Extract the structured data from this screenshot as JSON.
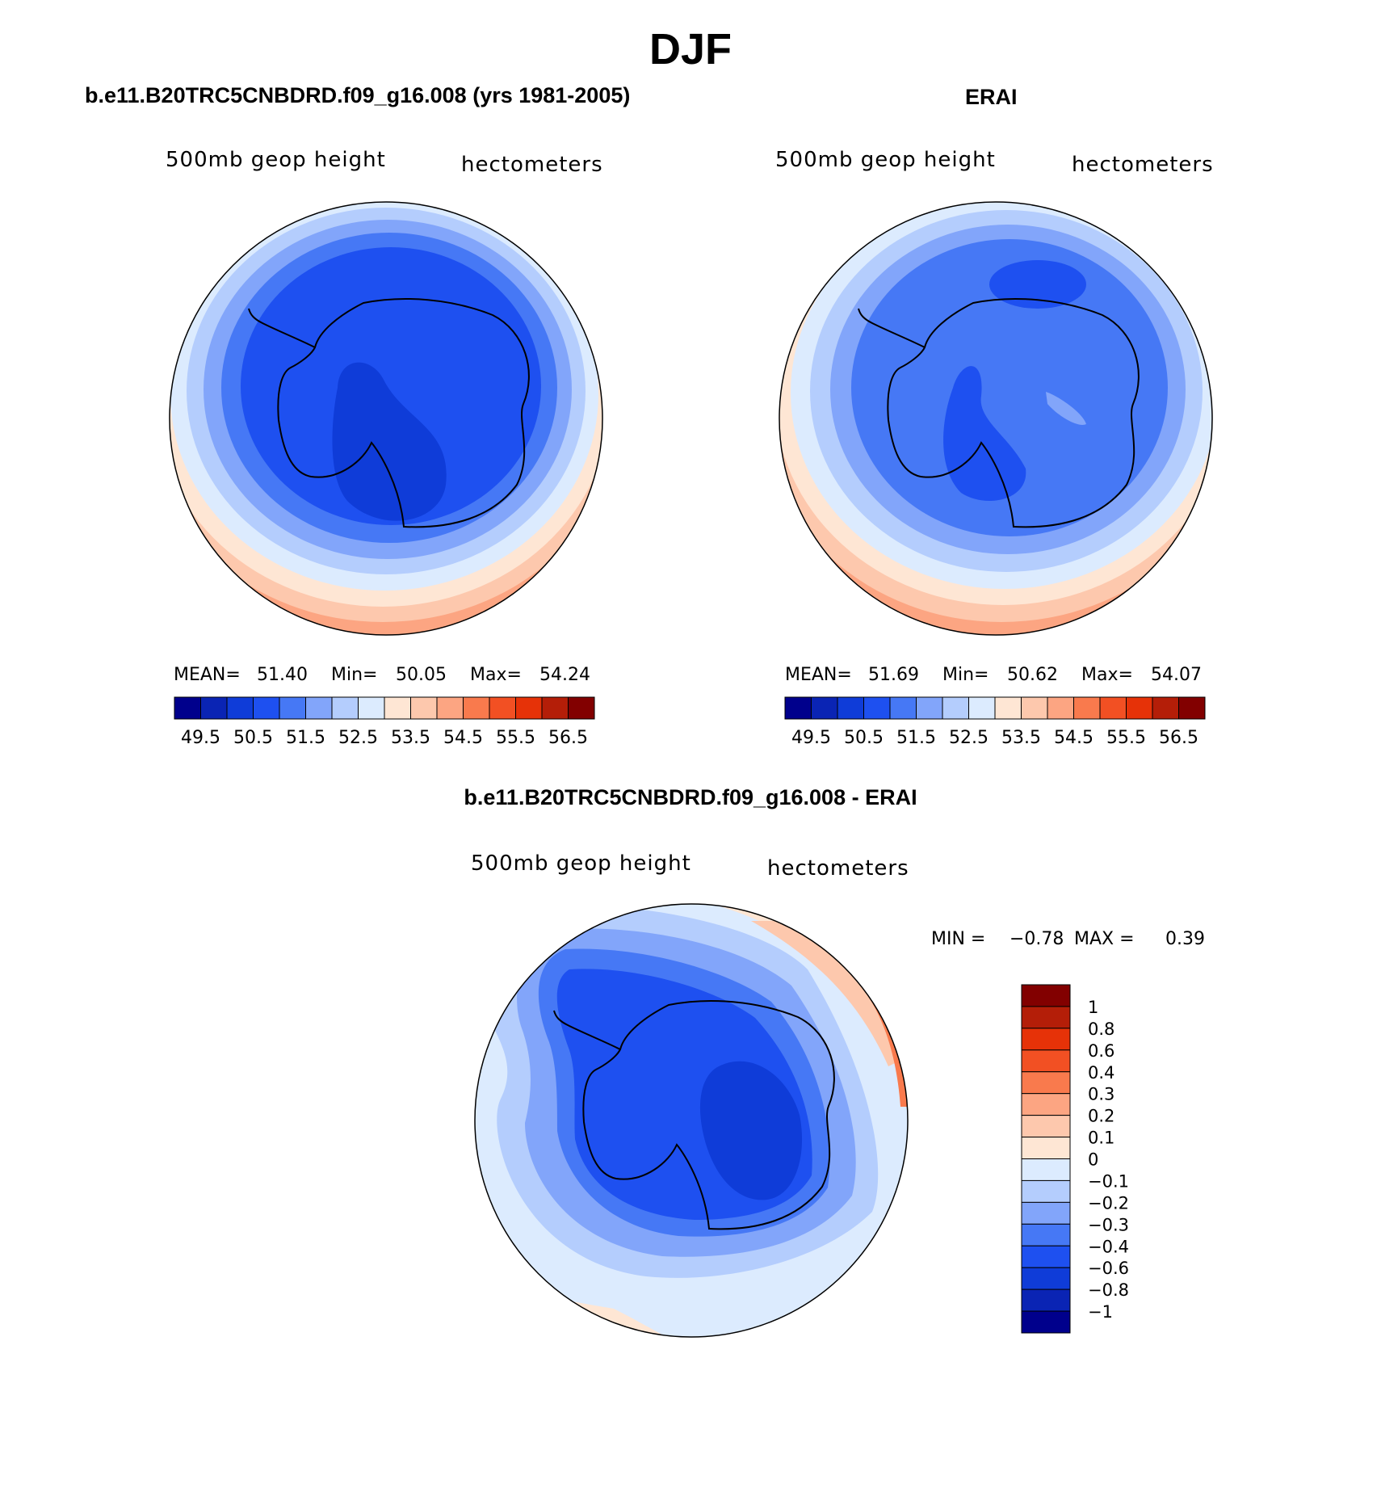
{
  "figure": {
    "title": "DJF",
    "panels": [
      {
        "title": "b.e11.B20TRC5CNBDRD.f09_g16.008 (yrs 1981-2005)",
        "left_label": "500mb geop height",
        "right_label": "hectometers",
        "stats": {
          "mean_label": "MEAN=",
          "mean": "51.40",
          "min_label": "Min=",
          "min": "50.05",
          "max_label": "Max=",
          "max": "54.24"
        }
      },
      {
        "title": "ERAI",
        "left_label": "500mb geop height",
        "right_label": "hectometers",
        "stats": {
          "mean_label": "MEAN=",
          "mean": "51.69",
          "min_label": "Min=",
          "min": "50.62",
          "max_label": "Max=",
          "max": "54.07"
        }
      },
      {
        "title": "b.e11.B20TRC5CNBDRD.f09_g16.008 - ERAI",
        "left_label": "500mb geop height",
        "right_label": "hectometers",
        "stats": {
          "min_label": "MIN =",
          "min": "−0.78",
          "max_label": "MAX =",
          "max": "0.39"
        }
      }
    ]
  },
  "chart_data": [
    {
      "type": "heatmap",
      "projection": "south-polar-stereographic",
      "title": "b.e11.B20TRC5CNBDRD.f09_g16.008 (yrs 1981-2005)",
      "variable": "500mb geop height",
      "units": "hectometers",
      "mean": 51.4,
      "min": 50.05,
      "max": 54.24,
      "colorbar": {
        "orientation": "horizontal",
        "levels": [
          49.5,
          50,
          50.5,
          51,
          51.5,
          52,
          52.5,
          53,
          53.5,
          54,
          54.5,
          55,
          55.5,
          56,
          56.5
        ],
        "tick_labels": [
          "49.5",
          "50.5",
          "51.5",
          "52.5",
          "53.5",
          "54.5",
          "55.5",
          "56.5"
        ],
        "colors": [
          "#00008c",
          "#0a24b4",
          "#0f3cd8",
          "#1e50f0",
          "#4678f5",
          "#82a5fa",
          "#b4cdfd",
          "#dcebfe",
          "#fee6d4",
          "#fdc8ad",
          "#fca582",
          "#f97a4d",
          "#f25023",
          "#e63208",
          "#b41e08",
          "#820000"
        ]
      }
    },
    {
      "type": "heatmap",
      "projection": "south-polar-stereographic",
      "title": "ERAI",
      "variable": "500mb geop height",
      "units": "hectometers",
      "mean": 51.69,
      "min": 50.62,
      "max": 54.07,
      "colorbar": {
        "orientation": "horizontal",
        "levels": [
          49.5,
          50,
          50.5,
          51,
          51.5,
          52,
          52.5,
          53,
          53.5,
          54,
          54.5,
          55,
          55.5,
          56,
          56.5
        ],
        "tick_labels": [
          "49.5",
          "50.5",
          "51.5",
          "52.5",
          "53.5",
          "54.5",
          "55.5",
          "56.5"
        ],
        "colors": [
          "#00008c",
          "#0a24b4",
          "#0f3cd8",
          "#1e50f0",
          "#4678f5",
          "#82a5fa",
          "#b4cdfd",
          "#dcebfe",
          "#fee6d4",
          "#fdc8ad",
          "#fca582",
          "#f97a4d",
          "#f25023",
          "#e63208",
          "#b41e08",
          "#820000"
        ]
      }
    },
    {
      "type": "heatmap",
      "projection": "south-polar-stereographic",
      "title": "b.e11.B20TRC5CNBDRD.f09_g16.008 - ERAI",
      "variable": "500mb geop height",
      "units": "hectometers",
      "min": -0.78,
      "max": 0.39,
      "colorbar": {
        "orientation": "vertical",
        "levels": [
          1,
          0.8,
          0.6,
          0.4,
          0.3,
          0.2,
          0.1,
          0,
          -0.1,
          -0.2,
          -0.3,
          -0.4,
          -0.6,
          -0.8,
          -1
        ],
        "tick_labels": [
          "1",
          "0.8",
          "0.6",
          "0.4",
          "0.3",
          "0.2",
          "0.1",
          "0",
          "−0.1",
          "−0.2",
          "−0.3",
          "−0.4",
          "−0.6",
          "−0.8",
          "−1"
        ],
        "colors_top_to_bottom": [
          "#820000",
          "#b41e08",
          "#e63208",
          "#f25023",
          "#f97a4d",
          "#fca582",
          "#fdc8ad",
          "#fee6d4",
          "#dcebfe",
          "#b4cdfd",
          "#82a5fa",
          "#4678f5",
          "#1e50f0",
          "#0f3cd8",
          "#0a24b4",
          "#00008c"
        ]
      }
    }
  ]
}
